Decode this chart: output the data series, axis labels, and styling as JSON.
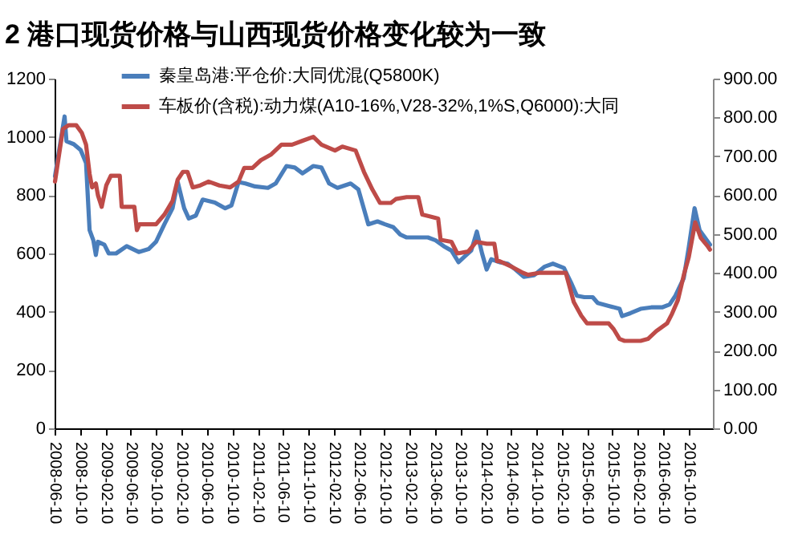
{
  "chart_data": {
    "type": "line",
    "title": "2  港口现货价格与山西现货价格变化较为一致",
    "xlim": [
      "2008-06-10",
      "2017-02-03"
    ],
    "xticks": [
      "2008-06-10",
      "2008-10-10",
      "2009-02-10",
      "2009-06-10",
      "2009-10-10",
      "2010-02-10",
      "2010-06-10",
      "2010-10-10",
      "2011-02-10",
      "2011-06-10",
      "2011-10-10",
      "2012-02-10",
      "2012-06-10",
      "2012-10-10",
      "2013-02-10",
      "2013-06-10",
      "2013-10-10",
      "2014-02-10",
      "2014-06-10",
      "2014-10-10",
      "2015-02-10",
      "2015-06-10",
      "2015-10-10",
      "2016-02-10",
      "2016-06-10",
      "2016-10-10"
    ],
    "ylim": [
      0,
      1200
    ],
    "yticks": [
      0,
      200,
      400,
      600,
      800,
      1000,
      1200
    ],
    "y2lim": [
      0,
      900
    ],
    "y2ticks": [
      {
        "value": 0,
        "label": "0.00"
      },
      {
        "value": 100,
        "label": "100.00"
      },
      {
        "value": 200,
        "label": "200.00"
      },
      {
        "value": 300,
        "label": "300.00"
      },
      {
        "value": 400,
        "label": "400.00"
      },
      {
        "value": 500,
        "label": "500.00"
      },
      {
        "value": 600,
        "label": "600.00"
      },
      {
        "value": 700,
        "label": "700.00"
      },
      {
        "value": 800,
        "label": "800.00"
      },
      {
        "value": 900,
        "label": "900.00"
      }
    ],
    "legend": "top left",
    "grid": false,
    "marker": "none",
    "line_style": "solid",
    "series": [
      {
        "name": "秦皇岛港:平仓价:大同优混(Q5800K)",
        "color": "#4a7ebb",
        "x": [
          "2008-06-12",
          "2008-07-28",
          "2008-08-06",
          "2008-09-10",
          "2008-10-13",
          "2008-11-08",
          "2008-11-25",
          "2008-12-13",
          "2008-12-25",
          "2009-01-04",
          "2009-02-04",
          "2009-02-25",
          "2009-04-01",
          "2009-05-22",
          "2009-07-19",
          "2009-09-04",
          "2009-10-10",
          "2009-11-19",
          "2009-12-28",
          "2010-01-22",
          "2010-02-22",
          "2010-03-16",
          "2010-04-19",
          "2010-05-22",
          "2010-07-19",
          "2010-09-07",
          "2010-10-07",
          "2010-11-10",
          "2010-12-13",
          "2011-01-28",
          "2011-03-31",
          "2011-05-07",
          "2011-06-28",
          "2011-08-07",
          "2011-09-13",
          "2011-11-04",
          "2011-12-13",
          "2012-01-19",
          "2012-02-28",
          "2012-05-01",
          "2012-06-07",
          "2012-07-25",
          "2012-09-07",
          "2012-10-13",
          "2012-11-22",
          "2012-12-25",
          "2013-01-25",
          "2013-03-16",
          "2013-05-07",
          "2013-06-13",
          "2013-07-22",
          "2013-08-28",
          "2013-10-01",
          "2013-10-31",
          "2013-12-01",
          "2013-12-28",
          "2014-01-22",
          "2014-02-13",
          "2014-03-07",
          "2014-04-16",
          "2014-05-25",
          "2014-07-01",
          "2014-08-10",
          "2014-09-28",
          "2014-11-19",
          "2014-12-28",
          "2015-02-19",
          "2015-03-25",
          "2015-04-22",
          "2015-05-28",
          "2015-07-07",
          "2015-07-31",
          "2015-09-22",
          "2015-11-13",
          "2015-11-25",
          "2016-01-04",
          "2016-02-22",
          "2016-04-13",
          "2016-06-04",
          "2016-07-10",
          "2016-08-07",
          "2016-09-16",
          "2016-10-10",
          "2016-11-07",
          "2016-12-01",
          "2017-01-20"
        ],
        "values": [
          865,
          1070,
          985,
          975,
          955,
          910,
          680,
          645,
          595,
          640,
          630,
          600,
          600,
          625,
          605,
          615,
          640,
          700,
          755,
          845,
          755,
          720,
          730,
          785,
          775,
          755,
          765,
          845,
          840,
          830,
          825,
          840,
          900,
          895,
          875,
          900,
          895,
          840,
          825,
          840,
          820,
          700,
          710,
          700,
          690,
          665,
          655,
          655,
          655,
          645,
          625,
          610,
          570,
          590,
          610,
          675,
          600,
          545,
          580,
          570,
          565,
          545,
          520,
          525,
          555,
          565,
          550,
          500,
          455,
          450,
          450,
          430,
          420,
          410,
          385,
          395,
          410,
          415,
          415,
          425,
          455,
          515,
          620,
          755,
          680,
          630
        ]
      },
      {
        "name": "车板价(含税):动力煤(A10-16%,V28-32%,1%S,Q6000):大同",
        "color": "#be4b48",
        "axis": "y2",
        "x": [
          "2008-06-12",
          "2008-07-20",
          "2008-08-16",
          "2008-09-22",
          "2008-10-19",
          "2008-11-08",
          "2008-11-25",
          "2008-12-07",
          "2008-12-25",
          "2009-01-04",
          "2009-01-22",
          "2009-02-13",
          "2009-03-07",
          "2009-04-19",
          "2009-04-28",
          "2009-06-28",
          "2009-07-10",
          "2009-07-22",
          "2009-10-10",
          "2009-11-19",
          "2009-12-28",
          "2010-01-22",
          "2010-02-16",
          "2010-03-10",
          "2010-04-04",
          "2010-05-10",
          "2010-06-19",
          "2010-08-10",
          "2010-10-01",
          "2010-11-10",
          "2010-12-07",
          "2011-01-16",
          "2011-02-25",
          "2011-04-16",
          "2011-06-04",
          "2011-07-25",
          "2011-09-13",
          "2011-11-04",
          "2011-12-13",
          "2012-02-16",
          "2012-03-22",
          "2012-05-25",
          "2012-07-04",
          "2012-08-13",
          "2012-09-19",
          "2012-11-10",
          "2012-12-04",
          "2013-01-25",
          "2013-03-22",
          "2013-04-10",
          "2013-05-19",
          "2013-06-25",
          "2013-07-07",
          "2013-08-28",
          "2013-09-25",
          "2013-11-16",
          "2013-12-25",
          "2014-02-13",
          "2014-03-22",
          "2014-04-04",
          "2014-04-16",
          "2014-06-16",
          "2014-08-07",
          "2014-08-31",
          "2014-10-22",
          "2015-02-28",
          "2015-03-10",
          "2015-04-07",
          "2015-05-13",
          "2015-06-10",
          "2015-09-22",
          "2015-10-16",
          "2015-11-13",
          "2015-12-07",
          "2016-02-22",
          "2016-03-28",
          "2016-05-07",
          "2016-06-28",
          "2016-07-22",
          "2016-08-19",
          "2016-09-19",
          "2016-10-10",
          "2016-11-10",
          "2016-12-07",
          "2017-01-07",
          "2017-01-20"
        ],
        "values": [
          635,
          770,
          780,
          780,
          760,
          730,
          655,
          620,
          630,
          600,
          570,
          625,
          650,
          650,
          570,
          570,
          510,
          525,
          525,
          550,
          585,
          640,
          660,
          660,
          620,
          625,
          635,
          625,
          620,
          635,
          670,
          670,
          690,
          705,
          730,
          730,
          740,
          750,
          730,
          715,
          725,
          715,
          660,
          615,
          580,
          580,
          590,
          595,
          595,
          550,
          545,
          540,
          485,
          480,
          450,
          455,
          480,
          475,
          475,
          430,
          430,
          415,
          400,
          395,
          400,
          400,
          380,
          325,
          290,
          270,
          270,
          255,
          230,
          225,
          225,
          230,
          250,
          270,
          295,
          330,
          400,
          440,
          530,
          490,
          470,
          460
        ]
      }
    ]
  }
}
